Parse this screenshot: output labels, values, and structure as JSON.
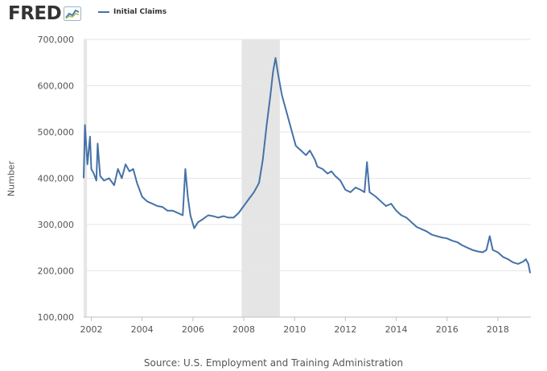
{
  "brand": {
    "name": "FRED",
    "icon": "fred-chart-logo-icon"
  },
  "legend": {
    "label": "Initial Claims",
    "color": "#4572a7"
  },
  "source": "Source: U.S. Employment and Training Administration",
  "chart_data": {
    "type": "line",
    "ylabel": "Number",
    "ylim": [
      100000,
      700000
    ],
    "yticks": [
      100000,
      200000,
      300000,
      400000,
      500000,
      600000,
      700000
    ],
    "ytick_labels": [
      "100,000",
      "200,000",
      "300,000",
      "400,000",
      "500,000",
      "600,000",
      "700,000"
    ],
    "xlim": [
      2001.7,
      2019.3
    ],
    "xticks": [
      2002,
      2004,
      2006,
      2008,
      2010,
      2012,
      2014,
      2016,
      2018
    ],
    "xtick_labels": [
      "2002",
      "2004",
      "2006",
      "2008",
      "2010",
      "2012",
      "2014",
      "2016",
      "2018"
    ],
    "grid": true,
    "recession_bands": [
      [
        2001.7,
        2001.83
      ],
      [
        2007.92,
        2009.42
      ]
    ],
    "recession_color": "#e5e5e5",
    "series": [
      {
        "name": "Initial Claims",
        "color": "#4572a7",
        "points": [
          [
            2001.7,
            400000
          ],
          [
            2001.75,
            515000
          ],
          [
            2001.8,
            470000
          ],
          [
            2001.85,
            430000
          ],
          [
            2001.95,
            490000
          ],
          [
            2002.0,
            420000
          ],
          [
            2002.1,
            410000
          ],
          [
            2002.2,
            395000
          ],
          [
            2002.25,
            475000
          ],
          [
            2002.35,
            405000
          ],
          [
            2002.5,
            395000
          ],
          [
            2002.7,
            400000
          ],
          [
            2002.9,
            385000
          ],
          [
            2003.05,
            420000
          ],
          [
            2003.2,
            400000
          ],
          [
            2003.35,
            430000
          ],
          [
            2003.5,
            415000
          ],
          [
            2003.65,
            420000
          ],
          [
            2003.8,
            390000
          ],
          [
            2004.0,
            360000
          ],
          [
            2004.2,
            350000
          ],
          [
            2004.4,
            345000
          ],
          [
            2004.6,
            340000
          ],
          [
            2004.8,
            338000
          ],
          [
            2005.0,
            330000
          ],
          [
            2005.2,
            330000
          ],
          [
            2005.4,
            325000
          ],
          [
            2005.6,
            320000
          ],
          [
            2005.7,
            420000
          ],
          [
            2005.8,
            360000
          ],
          [
            2005.9,
            320000
          ],
          [
            2006.05,
            292000
          ],
          [
            2006.2,
            305000
          ],
          [
            2006.4,
            312000
          ],
          [
            2006.6,
            320000
          ],
          [
            2006.8,
            318000
          ],
          [
            2007.0,
            315000
          ],
          [
            2007.2,
            318000
          ],
          [
            2007.4,
            315000
          ],
          [
            2007.6,
            315000
          ],
          [
            2007.8,
            325000
          ],
          [
            2008.0,
            340000
          ],
          [
            2008.2,
            355000
          ],
          [
            2008.4,
            370000
          ],
          [
            2008.6,
            390000
          ],
          [
            2008.75,
            440000
          ],
          [
            2008.9,
            515000
          ],
          [
            2009.05,
            580000
          ],
          [
            2009.15,
            630000
          ],
          [
            2009.25,
            660000
          ],
          [
            2009.35,
            625000
          ],
          [
            2009.5,
            580000
          ],
          [
            2009.7,
            540000
          ],
          [
            2009.9,
            500000
          ],
          [
            2010.05,
            470000
          ],
          [
            2010.25,
            460000
          ],
          [
            2010.45,
            450000
          ],
          [
            2010.6,
            460000
          ],
          [
            2010.8,
            440000
          ],
          [
            2010.9,
            425000
          ],
          [
            2011.1,
            420000
          ],
          [
            2011.3,
            410000
          ],
          [
            2011.45,
            415000
          ],
          [
            2011.6,
            405000
          ],
          [
            2011.8,
            395000
          ],
          [
            2012.0,
            375000
          ],
          [
            2012.2,
            370000
          ],
          [
            2012.4,
            380000
          ],
          [
            2012.6,
            375000
          ],
          [
            2012.75,
            370000
          ],
          [
            2012.85,
            435000
          ],
          [
            2012.95,
            370000
          ],
          [
            2013.2,
            360000
          ],
          [
            2013.4,
            350000
          ],
          [
            2013.6,
            340000
          ],
          [
            2013.8,
            345000
          ],
          [
            2014.0,
            330000
          ],
          [
            2014.2,
            320000
          ],
          [
            2014.4,
            315000
          ],
          [
            2014.6,
            305000
          ],
          [
            2014.8,
            295000
          ],
          [
            2015.0,
            290000
          ],
          [
            2015.2,
            285000
          ],
          [
            2015.4,
            278000
          ],
          [
            2015.6,
            275000
          ],
          [
            2015.8,
            272000
          ],
          [
            2016.0,
            270000
          ],
          [
            2016.2,
            265000
          ],
          [
            2016.4,
            262000
          ],
          [
            2016.6,
            255000
          ],
          [
            2016.8,
            250000
          ],
          [
            2017.0,
            245000
          ],
          [
            2017.2,
            242000
          ],
          [
            2017.4,
            240000
          ],
          [
            2017.55,
            245000
          ],
          [
            2017.68,
            275000
          ],
          [
            2017.8,
            245000
          ],
          [
            2018.0,
            240000
          ],
          [
            2018.2,
            230000
          ],
          [
            2018.4,
            225000
          ],
          [
            2018.6,
            218000
          ],
          [
            2018.8,
            215000
          ],
          [
            2019.0,
            220000
          ],
          [
            2019.1,
            225000
          ],
          [
            2019.2,
            215000
          ],
          [
            2019.27,
            195000
          ]
        ]
      }
    ]
  }
}
